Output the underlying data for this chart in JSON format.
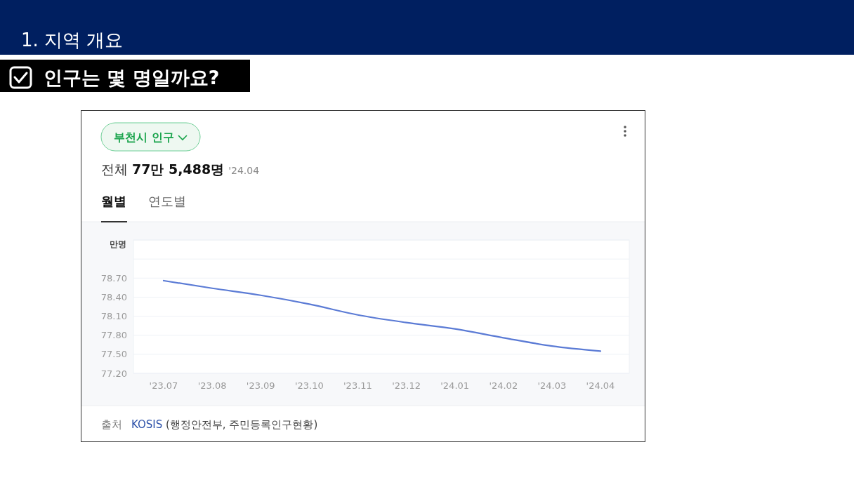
{
  "chart_data": {
    "type": "line",
    "title": "1. 지역 개요",
    "subtitle": "인구는 몇 명일까요?",
    "ylabel": "만명",
    "annotations": [
      "부천시 인구",
      "전체",
      "77만 5,488명",
      "'24.04",
      "월별",
      "연도별",
      "출처",
      "KOSIS",
      "(행정안전부, 주민등록인구현황)"
    ],
    "categories": [
      "'23.07",
      "'23.08",
      "'23.09",
      "'23.10",
      "'23.11",
      "'23.12",
      "'24.01",
      "'24.02",
      "'24.03",
      "'24.04"
    ],
    "series": [
      {
        "color": "#5b7bd5",
        "values": [
          78.66,
          78.54,
          78.43,
          78.29,
          78.12,
          78.0,
          77.9,
          77.76,
          77.63,
          77.55
        ]
      }
    ],
    "ylim": [
      77.2,
      79.3
    ],
    "yticks": [
      {
        "value": 77.2,
        "label": "77.20"
      },
      {
        "value": 77.5,
        "label": "77.50"
      },
      {
        "value": 77.8,
        "label": "77.80"
      },
      {
        "value": 78.1,
        "label": "78.10"
      },
      {
        "value": 78.4,
        "label": "78.40"
      },
      {
        "value": 78.7,
        "label": "78.70"
      },
      {
        "value": 79.0,
        "label": null
      },
      {
        "value": 79.3,
        "label": null
      }
    ],
    "grid": "y",
    "marker": "none",
    "line_style": "solid"
  }
}
